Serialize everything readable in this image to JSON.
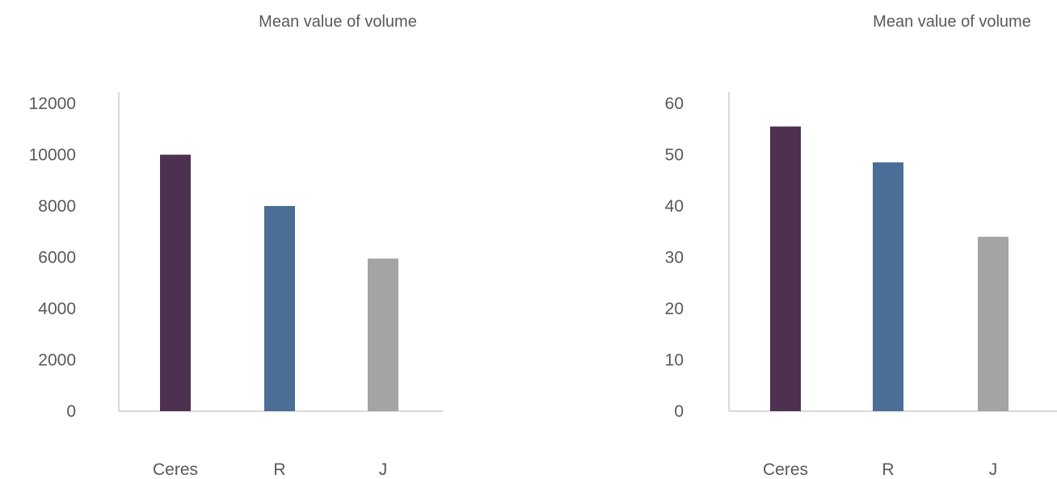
{
  "colors": {
    "Ceres": "#4e3150",
    "R": "#4a6e96",
    "J": "#a5a4a5"
  },
  "chart_data": [
    {
      "type": "bar",
      "title": "Mean value of volume",
      "categories": [
        "Ceres",
        "R",
        "J"
      ],
      "values": [
        10000,
        8000,
        5950
      ],
      "ylim": [
        0,
        12000
      ],
      "yticks": [
        0,
        2000,
        4000,
        6000,
        8000,
        10000,
        12000
      ],
      "xlabel": "",
      "ylabel": "",
      "grid": false,
      "legend": "none"
    },
    {
      "type": "bar",
      "title": "Mean value of volume",
      "categories": [
        "Ceres",
        "R",
        "J"
      ],
      "values": [
        55.5,
        48.5,
        34
      ],
      "ylim": [
        0,
        60
      ],
      "yticks": [
        0,
        10,
        20,
        30,
        40,
        50,
        60
      ],
      "xlabel": "",
      "ylabel": "",
      "grid": false,
      "legend": "none"
    }
  ]
}
